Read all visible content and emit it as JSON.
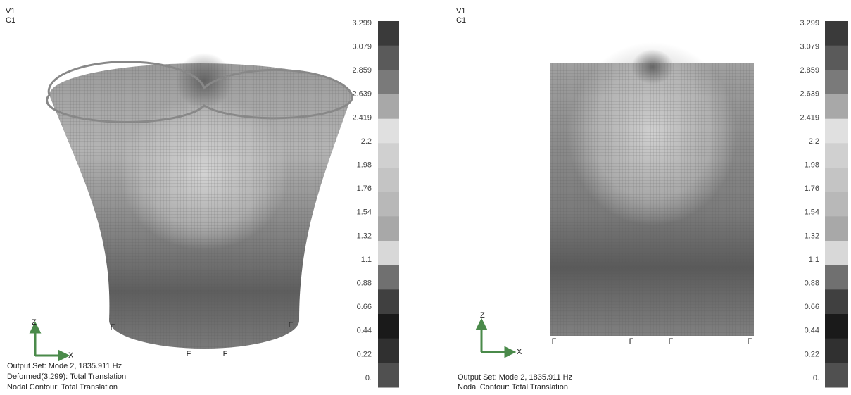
{
  "panels": [
    {
      "view": "V1",
      "contour": "C1",
      "legend": [
        "3.299",
        "3.079",
        "2.859",
        "2.639",
        "2.419",
        "2.2",
        "1.98",
        "1.76",
        "1.54",
        "1.32",
        "1.1",
        "0.88",
        "0.66",
        "0.44",
        "0.22",
        "0."
      ],
      "markers": [
        "F",
        "F",
        "F",
        "F"
      ],
      "axes": {
        "z": "Z",
        "x": "X"
      },
      "footer": [
        "Output Set: Mode 2, 1835.911 Hz",
        "Deformed(3.299): Total Translation",
        "Nodal Contour: Total Translation"
      ]
    },
    {
      "view": "V1",
      "contour": "C1",
      "legend": [
        "3.299",
        "3.079",
        "2.859",
        "2.639",
        "2.419",
        "2.2",
        "1.98",
        "1.76",
        "1.54",
        "1.32",
        "1.1",
        "0.88",
        "0.66",
        "0.44",
        "0.22",
        "0."
      ],
      "markers": [
        "F",
        "F",
        "F",
        "F"
      ],
      "axes": {
        "z": "Z",
        "x": "X"
      },
      "footer": [
        "Output Set: Mode 2, 1835.911 Hz",
        "Nodal Contour: Total Translation"
      ]
    }
  ]
}
